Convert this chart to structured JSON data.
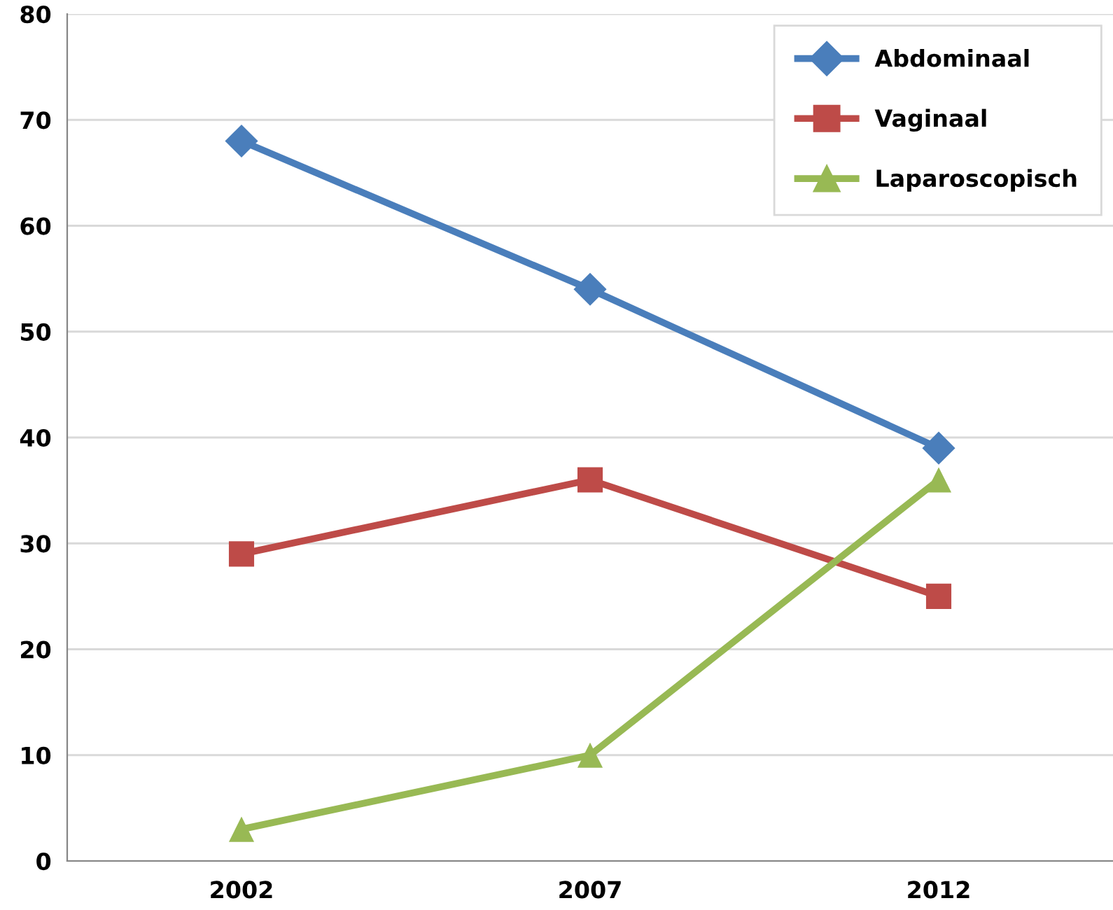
{
  "chart_data": {
    "type": "line",
    "x": [
      2002,
      2007,
      2012
    ],
    "series": [
      {
        "name": "Abdominaal",
        "color": "#4a7ebb",
        "marker": "diamond",
        "values": [
          68,
          54,
          39
        ]
      },
      {
        "name": "Vaginaal",
        "color": "#be4b48",
        "marker": "square",
        "values": [
          29,
          36,
          25
        ]
      },
      {
        "name": "Laparoscopisch",
        "color": "#98b954",
        "marker": "triangle",
        "values": [
          3,
          10,
          36
        ]
      }
    ],
    "xlim": [
      1999.5,
      2014.5
    ],
    "xticks": [
      2002,
      2007,
      2012
    ],
    "ylim": [
      0,
      80
    ],
    "yticks": [
      0,
      10,
      20,
      30,
      40,
      50,
      60,
      70,
      80
    ],
    "grid": "y",
    "legend": "top right",
    "line_style": "solid"
  }
}
